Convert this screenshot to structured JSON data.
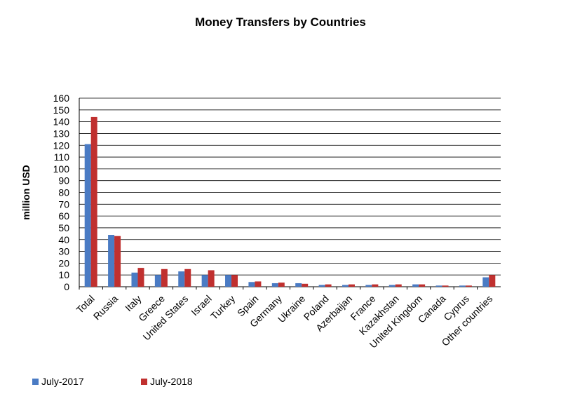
{
  "chart_data": {
    "type": "bar",
    "title": "Money Transfers by Countries",
    "xlabel": "",
    "ylabel": "million USD",
    "ylim": [
      0,
      160
    ],
    "yticks": [
      0,
      10,
      20,
      30,
      40,
      50,
      60,
      70,
      80,
      90,
      100,
      110,
      120,
      130,
      140,
      150,
      160
    ],
    "categories": [
      "Total",
      "Russia",
      "Italy",
      "Greece",
      "United States",
      "Israel",
      "Turkey",
      "Spain",
      "Germany",
      "Ukraine",
      "Poland",
      "Azerbaijan",
      "France",
      "Kazakhstan",
      "United Kingdom",
      "Canada",
      "Cyprus",
      "Other countries"
    ],
    "series": [
      {
        "name": "July-2017",
        "color": "#4a7bc4",
        "values": [
          121,
          44,
          12,
          10,
          13,
          10,
          10,
          4,
          3,
          3,
          1.5,
          1.5,
          1.5,
          1.5,
          2,
          1,
          1,
          8
        ]
      },
      {
        "name": "July-2018",
        "color": "#c0302f",
        "values": [
          144,
          43,
          16,
          15,
          15,
          14,
          10,
          4.5,
          3.5,
          2.5,
          2,
          2,
          2,
          2,
          2,
          1,
          1,
          10
        ]
      }
    ],
    "grid": true,
    "legend_position": "bottom-left"
  }
}
